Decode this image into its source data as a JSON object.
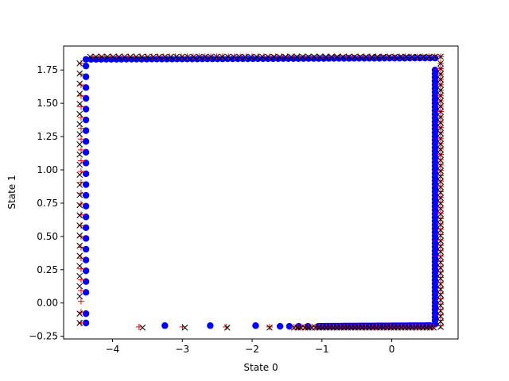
{
  "chart_data": {
    "type": "scatter",
    "title": "",
    "xlabel": "State 0",
    "ylabel": "State 1",
    "xlim": [
      -4.7,
      0.95
    ],
    "ylim": [
      -0.27,
      1.93
    ],
    "xticks": [
      -4,
      -3,
      -2,
      -1,
      0
    ],
    "xtick_labels": [
      "−4",
      "−3",
      "−2",
      "−1",
      "0"
    ],
    "yticks": [
      -0.25,
      0.0,
      0.25,
      0.5,
      0.75,
      1.0,
      1.25,
      1.5,
      1.75
    ],
    "ytick_labels": [
      "−0.25",
      "0.00",
      "0.25",
      "0.50",
      "0.75",
      "1.00",
      "1.25",
      "1.50",
      "1.75"
    ],
    "grid": false,
    "legend": "none",
    "series": [
      {
        "marker": "circle",
        "color": "#0000ff",
        "path": [
          {
            "from": [
              -4.38,
              -0.15
            ],
            "to": [
              -4.38,
              -0.08
            ],
            "n": 2
          },
          {
            "from": [
              -4.38,
              0.08
            ],
            "to": [
              -4.38,
              1.78
            ],
            "n": 22
          },
          {
            "from": [
              -4.38,
              1.83
            ],
            "to": [
              0.62,
              1.84
            ],
            "n": 70
          },
          {
            "from": [
              0.62,
              1.75
            ],
            "to": [
              0.62,
              -0.16
            ],
            "n": 70
          },
          {
            "from": [
              0.55,
              -0.17
            ],
            "to": [
              -1.05,
              -0.175
            ],
            "n": 60
          },
          {
            "from": [
              -1.2,
              -0.175
            ],
            "to": [
              -1.6,
              -0.175
            ],
            "n": 4
          },
          {
            "from": [
              -1.95,
              -0.17
            ],
            "to": [
              -3.25,
              -0.17
            ],
            "n": 3
          }
        ]
      },
      {
        "marker": "plus",
        "color": "#ff0000",
        "path": [
          {
            "from": [
              -4.45,
              -0.15
            ],
            "to": [
              -4.45,
              1.8
            ],
            "n": 25
          },
          {
            "from": [
              -4.28,
              1.85
            ],
            "to": [
              0.7,
              1.85
            ],
            "n": 60
          },
          {
            "from": [
              0.7,
              1.8
            ],
            "to": [
              0.7,
              -0.17
            ],
            "n": 50
          },
          {
            "from": [
              0.6,
              -0.18
            ],
            "to": [
              -1.4,
              -0.18
            ],
            "n": 40
          },
          {
            "from": [
              -1.75,
              -0.18
            ],
            "to": [
              -3.62,
              -0.18
            ],
            "n": 4
          }
        ]
      },
      {
        "marker": "x",
        "color": "#000000",
        "path": [
          {
            "from": [
              -4.47,
              -0.15
            ],
            "to": [
              -4.47,
              -0.08
            ],
            "n": 2
          },
          {
            "from": [
              -4.47,
              0.05
            ],
            "to": [
              -4.47,
              1.8
            ],
            "n": 24
          },
          {
            "from": [
              -4.32,
              1.85
            ],
            "to": [
              0.7,
              1.85
            ],
            "n": 62
          },
          {
            "from": [
              0.7,
              1.8
            ],
            "to": [
              0.7,
              -0.18
            ],
            "n": 50
          },
          {
            "from": [
              0.6,
              -0.185
            ],
            "to": [
              -1.4,
              -0.185
            ],
            "n": 40
          },
          {
            "from": [
              -1.75,
              -0.185
            ],
            "to": [
              -3.57,
              -0.185
            ],
            "n": 4
          }
        ]
      }
    ]
  }
}
